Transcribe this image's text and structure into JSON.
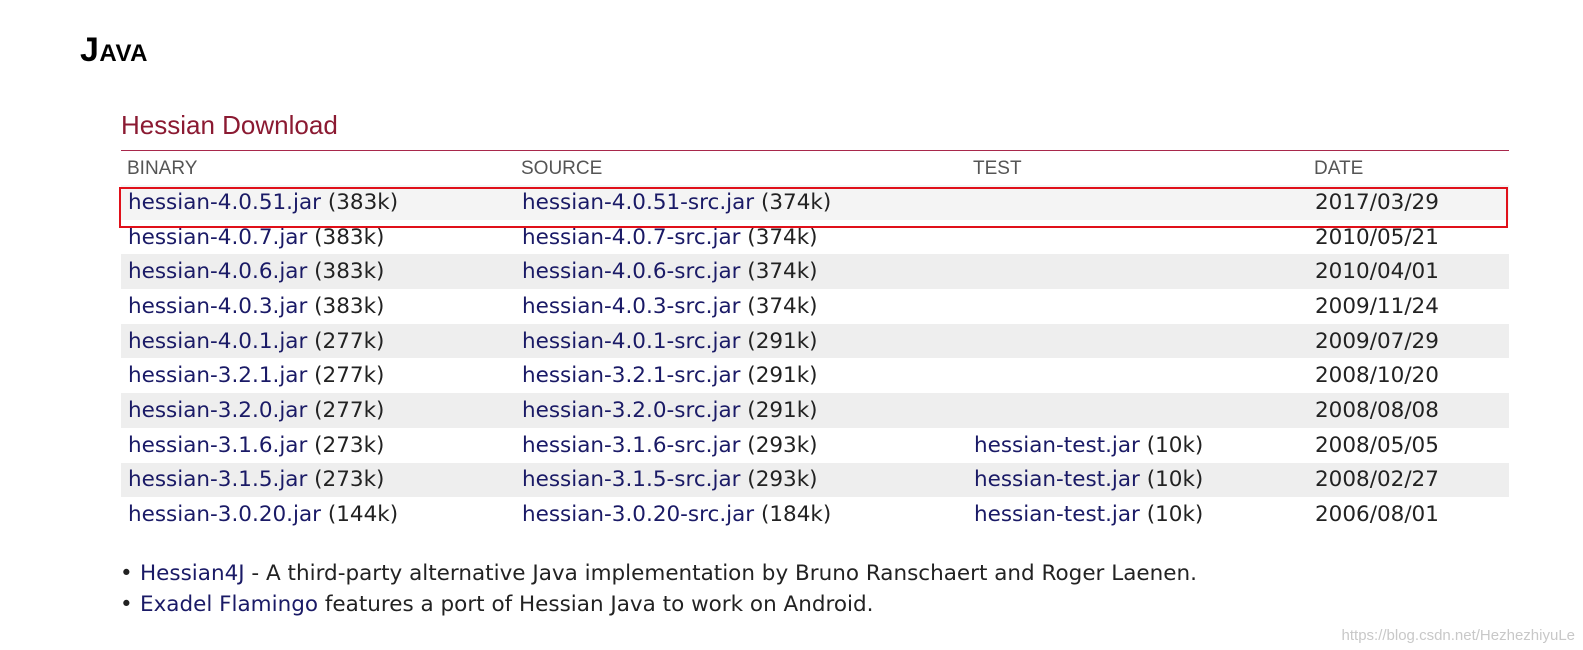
{
  "page": {
    "heading": "Java"
  },
  "download": {
    "title": "Hessian Download",
    "columns": {
      "binary": "BINARY",
      "source": "SOURCE",
      "test": "TEST",
      "date": "DATE"
    },
    "rows": [
      {
        "binary": "hessian-4.0.51.jar",
        "binary_size": " (383k)",
        "source": "hessian-4.0.51-src.jar",
        "source_size": " (374k)",
        "test": "",
        "test_size": "",
        "date": "2017/03/29"
      },
      {
        "binary": "hessian-4.0.7.jar",
        "binary_size": " (383k)",
        "source": "hessian-4.0.7-src.jar",
        "source_size": " (374k)",
        "test": "",
        "test_size": "",
        "date": "2010/05/21"
      },
      {
        "binary": "hessian-4.0.6.jar",
        "binary_size": " (383k)",
        "source": "hessian-4.0.6-src.jar",
        "source_size": " (374k)",
        "test": "",
        "test_size": "",
        "date": "2010/04/01"
      },
      {
        "binary": "hessian-4.0.3.jar",
        "binary_size": " (383k)",
        "source": "hessian-4.0.3-src.jar",
        "source_size": " (374k)",
        "test": "",
        "test_size": "",
        "date": "2009/11/24"
      },
      {
        "binary": "hessian-4.0.1.jar",
        "binary_size": " (277k)",
        "source": "hessian-4.0.1-src.jar",
        "source_size": " (291k)",
        "test": "",
        "test_size": "",
        "date": "2009/07/29"
      },
      {
        "binary": "hessian-3.2.1.jar",
        "binary_size": " (277k)",
        "source": "hessian-3.2.1-src.jar",
        "source_size": " (291k)",
        "test": "",
        "test_size": "",
        "date": "2008/10/20"
      },
      {
        "binary": "hessian-3.2.0.jar",
        "binary_size": " (277k)",
        "source": "hessian-3.2.0-src.jar",
        "source_size": " (291k)",
        "test": "",
        "test_size": "",
        "date": "2008/08/08"
      },
      {
        "binary": "hessian-3.1.6.jar",
        "binary_size": " (273k)",
        "source": "hessian-3.1.6-src.jar",
        "source_size": " (293k)",
        "test": "hessian-test.jar",
        "test_size": " (10k)",
        "date": "2008/05/05"
      },
      {
        "binary": "hessian-3.1.5.jar",
        "binary_size": " (273k)",
        "source": "hessian-3.1.5-src.jar",
        "source_size": " (293k)",
        "test": "hessian-test.jar",
        "test_size": " (10k)",
        "date": "2008/02/27"
      },
      {
        "binary": "hessian-3.0.20.jar",
        "binary_size": " (144k)",
        "source": "hessian-3.0.20-src.jar",
        "source_size": " (184k)",
        "test": "hessian-test.jar",
        "test_size": " (10k)",
        "date": "2006/08/01"
      }
    ]
  },
  "related": [
    {
      "link": "Hessian4J",
      "text": " - A third-party alternative Java implementation by Bruno Ranschaert and Roger Laenen."
    },
    {
      "link": "Exadel Flamingo",
      "text": " features a port of Hessian Java to work on Android."
    }
  ],
  "watermark": "https://blog.csdn.net/HezhezhiyuLe",
  "colors": {
    "section_title": "#8b1a32",
    "link": "#1a1a66",
    "highlight_border": "#e0101a",
    "row_stripe": "#eeeeee"
  }
}
